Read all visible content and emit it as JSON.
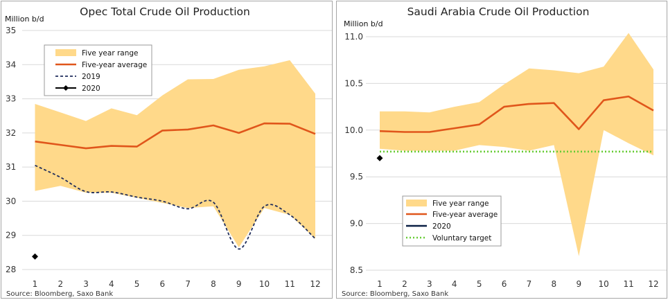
{
  "chart_data": [
    {
      "type": "area",
      "title": "Opec Total Crude Oil Production",
      "ylabel": "Million b/d",
      "source": "Source: Bloomberg, Saxo Bank",
      "categories": [
        "1",
        "2",
        "3",
        "4",
        "5",
        "6",
        "7",
        "8",
        "9",
        "10",
        "11",
        "12"
      ],
      "ylim": [
        28,
        35
      ],
      "yticks": [
        28,
        29,
        30,
        31,
        32,
        33,
        34,
        35
      ],
      "grid": true,
      "legend_position": "top-left",
      "colors": {
        "range": "#ffd98a",
        "average": "#e0561b",
        "y2019": "#1f2d5c",
        "y2020": "#000000"
      },
      "series": [
        {
          "name": "Five year range",
          "kind": "band",
          "low": [
            30.3,
            30.45,
            30.25,
            30.25,
            30.1,
            29.95,
            29.8,
            29.85,
            28.65,
            29.8,
            29.6,
            28.9
          ],
          "high": [
            32.85,
            32.6,
            32.35,
            32.72,
            32.52,
            33.1,
            33.57,
            33.58,
            33.85,
            33.95,
            34.13,
            33.15
          ]
        },
        {
          "name": "Five-year average",
          "kind": "line",
          "values": [
            31.75,
            31.65,
            31.55,
            31.62,
            31.6,
            32.07,
            32.1,
            32.22,
            32.0,
            32.28,
            32.27,
            31.97
          ]
        },
        {
          "name": "2019",
          "kind": "dashed",
          "values": [
            31.05,
            30.7,
            30.28,
            30.27,
            30.12,
            30.0,
            29.78,
            29.97,
            28.6,
            29.85,
            29.6,
            28.9
          ]
        },
        {
          "name": "2020",
          "kind": "marker",
          "values": [
            28.38,
            null,
            null,
            null,
            null,
            null,
            null,
            null,
            null,
            null,
            null,
            null
          ]
        }
      ]
    },
    {
      "type": "area",
      "title": "Saudi Arabia Crude Oil Production",
      "ylabel": "Million b/d",
      "source": "Source: Bloomberg, Saxo Bank",
      "categories": [
        "1",
        "2",
        "3",
        "4",
        "5",
        "6",
        "7",
        "8",
        "9",
        "10",
        "11",
        "12"
      ],
      "ylim": [
        8.5,
        11.0
      ],
      "yticks": [
        "8.5",
        "9.0",
        "9.5",
        "10.0",
        "10.5",
        "11.0"
      ],
      "grid": true,
      "legend_position": "bottom-left",
      "colors": {
        "range": "#ffd98a",
        "average": "#e0561b",
        "y2020": "#0a1f44",
        "target": "#66cc33"
      },
      "series": [
        {
          "name": "Five year range",
          "kind": "band",
          "low": [
            9.8,
            9.78,
            9.78,
            9.78,
            9.84,
            9.82,
            9.78,
            9.84,
            8.65,
            10.0,
            9.86,
            9.73
          ],
          "high": [
            10.2,
            10.2,
            10.19,
            10.25,
            10.3,
            10.49,
            10.66,
            10.64,
            10.61,
            10.68,
            11.04,
            10.65
          ]
        },
        {
          "name": "Five-year average",
          "kind": "line",
          "values": [
            9.99,
            9.98,
            9.98,
            10.02,
            10.06,
            10.25,
            10.28,
            10.29,
            10.01,
            10.32,
            10.36,
            10.21
          ]
        },
        {
          "name": "2020",
          "kind": "marker",
          "values": [
            9.7,
            null,
            null,
            null,
            null,
            null,
            null,
            null,
            null,
            null,
            null,
            null
          ]
        },
        {
          "name": "Voluntary target",
          "kind": "dotted",
          "values": [
            9.77,
            9.77,
            9.77,
            9.77,
            9.77,
            9.77,
            9.77,
            9.77,
            9.77,
            9.77,
            9.77,
            9.77
          ]
        }
      ]
    }
  ]
}
